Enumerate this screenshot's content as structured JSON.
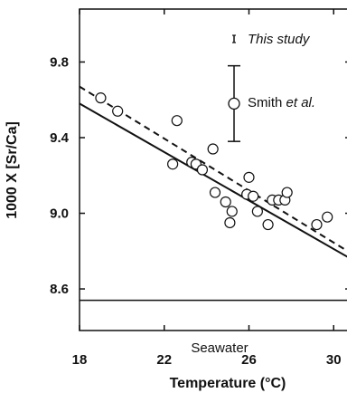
{
  "chart_data": {
    "type": "scatter",
    "xlabel": "Temperature (°C)",
    "ylabel": "1000 X [Sr/Ca]",
    "xlim": [
      18,
      30.8
    ],
    "ylim": [
      8.38,
      10.08
    ],
    "x_ticks": [
      18,
      22,
      26,
      30
    ],
    "x_tick_labels": [
      "18",
      "22",
      "26",
      "30"
    ],
    "y_ticks": [
      8.6,
      9.0,
      9.4,
      9.8
    ],
    "y_tick_labels": [
      "8.6",
      "9.0",
      "9.4",
      "9.8"
    ],
    "grid": false,
    "legend_position": "top-right",
    "legend": {
      "this_study": {
        "label_text": "This study"
      },
      "smith": {
        "label_prefix": "Smith ",
        "label_italic": "et al.",
        "error_bar_center": 9.58,
        "error_bar_half": 0.2
      }
    },
    "series": [
      {
        "name": "Smith et al.",
        "marker": "open-circle",
        "points": [
          {
            "x": 19.0,
            "y": 9.61
          },
          {
            "x": 19.8,
            "y": 9.54
          },
          {
            "x": 22.4,
            "y": 9.26
          },
          {
            "x": 22.6,
            "y": 9.49
          },
          {
            "x": 23.3,
            "y": 9.27
          },
          {
            "x": 23.5,
            "y": 9.26
          },
          {
            "x": 23.8,
            "y": 9.23
          },
          {
            "x": 24.3,
            "y": 9.34
          },
          {
            "x": 24.4,
            "y": 9.11
          },
          {
            "x": 24.9,
            "y": 9.06
          },
          {
            "x": 25.1,
            "y": 8.95
          },
          {
            "x": 25.2,
            "y": 9.01
          },
          {
            "x": 25.9,
            "y": 9.1
          },
          {
            "x": 26.0,
            "y": 9.19
          },
          {
            "x": 26.2,
            "y": 9.09
          },
          {
            "x": 26.4,
            "y": 9.01
          },
          {
            "x": 26.9,
            "y": 8.94
          },
          {
            "x": 27.1,
            "y": 9.07
          },
          {
            "x": 27.4,
            "y": 9.07
          },
          {
            "x": 27.7,
            "y": 9.07
          },
          {
            "x": 27.8,
            "y": 9.11
          },
          {
            "x": 29.2,
            "y": 8.94
          },
          {
            "x": 29.7,
            "y": 8.98
          }
        ]
      }
    ],
    "lines": [
      {
        "style": "solid",
        "from": {
          "x": 18.0,
          "y": 9.58
        },
        "to": {
          "x": 30.8,
          "y": 8.76
        }
      },
      {
        "style": "dashed",
        "from": {
          "x": 18.0,
          "y": 9.67
        },
        "to": {
          "x": 30.8,
          "y": 8.79
        }
      },
      {
        "style": "solid",
        "from": {
          "x": 18.0,
          "y": 8.54
        },
        "to": {
          "x": 30.8,
          "y": 8.54
        }
      }
    ],
    "annotations": [
      {
        "text": "Seawater",
        "x": 25.1,
        "y": 8.6
      }
    ]
  }
}
